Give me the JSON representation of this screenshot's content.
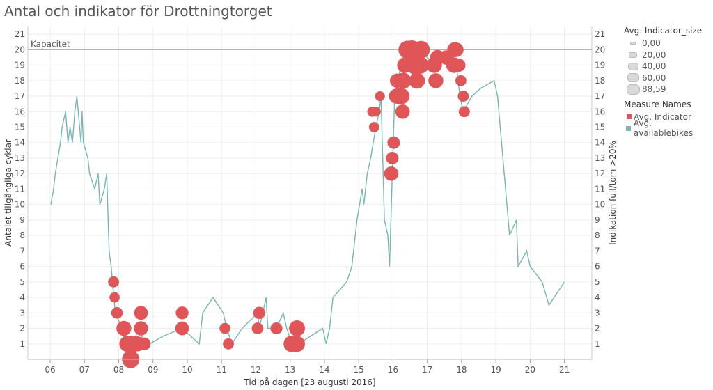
{
  "title": "Antal och indikator för Drottningtorget",
  "colors": {
    "indicator": "#e05558",
    "bikes": "#76b7b2",
    "capacity": "#aaaaaa",
    "grid": "#eeeeee"
  },
  "legend": {
    "size_title": "Avg. Indicator_size",
    "size_items": [
      "0,00",
      "20,00",
      "40,00",
      "60,00",
      "88,59"
    ],
    "color_title": "Measure Names",
    "color_items": [
      "Avg. Indicator",
      "Avg. availablebikes"
    ]
  },
  "chart_data": {
    "type": "line",
    "title": "Antal och indikator för Drottningtorget",
    "xlabel": "Tid på dagen [23 augusti 2016]",
    "ylabel": "Antalet tillgängliga cyklar",
    "y2label": "Indikation full/tom >20%",
    "xlim": [
      5.35,
      21.8
    ],
    "ylim": [
      0,
      21.5
    ],
    "x_ticks": [
      "06",
      "07",
      "08",
      "09",
      "10",
      "11",
      "12",
      "13",
      "14",
      "15",
      "16",
      "17",
      "18",
      "19",
      "20",
      "21"
    ],
    "y_ticks": [
      1,
      2,
      3,
      4,
      5,
      6,
      7,
      8,
      9,
      10,
      11,
      12,
      13,
      14,
      15,
      16,
      17,
      18,
      19,
      20,
      21
    ],
    "capacity": {
      "label": "Kapacitet",
      "value": 20
    },
    "series": [
      {
        "name": "Avg. availablebikes",
        "points": [
          [
            6.02,
            10
          ],
          [
            6.1,
            11
          ],
          [
            6.15,
            12
          ],
          [
            6.3,
            14
          ],
          [
            6.35,
            15
          ],
          [
            6.45,
            16
          ],
          [
            6.52,
            14
          ],
          [
            6.58,
            15
          ],
          [
            6.65,
            14
          ],
          [
            6.72,
            16
          ],
          [
            6.78,
            17
          ],
          [
            6.82,
            16
          ],
          [
            6.9,
            14
          ],
          [
            6.93,
            16
          ],
          [
            6.97,
            14
          ],
          [
            7.1,
            13
          ],
          [
            7.15,
            12
          ],
          [
            7.3,
            11
          ],
          [
            7.4,
            12
          ],
          [
            7.45,
            10
          ],
          [
            7.58,
            11
          ],
          [
            7.65,
            12
          ],
          [
            7.72,
            7
          ],
          [
            7.78,
            6
          ],
          [
            7.82,
            5
          ],
          [
            7.86,
            4
          ],
          [
            7.9,
            3
          ],
          [
            8.1,
            2
          ],
          [
            8.2,
            1
          ],
          [
            8.4,
            1
          ],
          [
            8.6,
            2
          ],
          [
            8.75,
            1
          ],
          [
            8.9,
            1
          ],
          [
            9.3,
            1.5
          ],
          [
            9.85,
            2
          ],
          [
            10.35,
            1
          ],
          [
            10.45,
            3
          ],
          [
            10.75,
            4
          ],
          [
            11.05,
            3
          ],
          [
            11.15,
            2
          ],
          [
            11.3,
            1
          ],
          [
            11.6,
            2
          ],
          [
            12.05,
            3
          ],
          [
            12.1,
            2
          ],
          [
            12.3,
            4
          ],
          [
            12.35,
            2
          ],
          [
            12.6,
            2
          ],
          [
            12.8,
            3
          ],
          [
            12.9,
            2
          ],
          [
            13.05,
            1
          ],
          [
            13.25,
            1
          ],
          [
            13.95,
            2
          ],
          [
            14.05,
            1
          ],
          [
            14.15,
            2
          ],
          [
            14.2,
            3
          ],
          [
            14.25,
            4
          ],
          [
            14.65,
            5
          ],
          [
            14.8,
            6
          ],
          [
            14.95,
            9
          ],
          [
            15.1,
            11
          ],
          [
            15.15,
            10
          ],
          [
            15.25,
            12
          ],
          [
            15.35,
            13
          ],
          [
            15.5,
            15
          ],
          [
            15.6,
            16
          ],
          [
            15.65,
            17
          ],
          [
            15.75,
            9
          ],
          [
            15.85,
            8
          ],
          [
            15.9,
            6
          ],
          [
            15.98,
            12
          ],
          [
            16.05,
            17
          ],
          [
            16.15,
            18
          ],
          [
            16.3,
            20
          ],
          [
            16.5,
            20
          ],
          [
            16.75,
            20
          ],
          [
            17.25,
            19
          ],
          [
            17.55,
            19.5
          ],
          [
            17.72,
            20
          ],
          [
            17.85,
            19
          ],
          [
            17.95,
            17
          ],
          [
            18.05,
            16
          ],
          [
            18.3,
            17
          ],
          [
            18.55,
            17.5
          ],
          [
            18.95,
            18
          ],
          [
            19.05,
            17
          ],
          [
            19.4,
            8
          ],
          [
            19.6,
            9
          ],
          [
            19.65,
            6
          ],
          [
            19.9,
            7
          ],
          [
            20.0,
            6
          ],
          [
            20.35,
            5
          ],
          [
            20.55,
            3.5
          ],
          [
            21.0,
            5
          ]
        ]
      },
      {
        "name": "Avg. Indicator",
        "points": [
          [
            7.85,
            5,
            10
          ],
          [
            7.88,
            4,
            8
          ],
          [
            7.95,
            3,
            12
          ],
          [
            8.15,
            2,
            25
          ],
          [
            8.25,
            1,
            30
          ],
          [
            8.35,
            1,
            33
          ],
          [
            8.45,
            1,
            30
          ],
          [
            8.55,
            1,
            25
          ],
          [
            8.65,
            2,
            22
          ],
          [
            8.65,
            3,
            20
          ],
          [
            8.75,
            1,
            15
          ],
          [
            8.35,
            0,
            38
          ],
          [
            9.85,
            2,
            20
          ],
          [
            9.85,
            3,
            16
          ],
          [
            11.1,
            2,
            10
          ],
          [
            11.2,
            1,
            10
          ],
          [
            12.05,
            2,
            12
          ],
          [
            12.1,
            3,
            14
          ],
          [
            12.6,
            2,
            13
          ],
          [
            13.05,
            1,
            33
          ],
          [
            13.2,
            1,
            30
          ],
          [
            13.2,
            2,
            30
          ],
          [
            15.4,
            16,
            8
          ],
          [
            15.45,
            15,
            8
          ],
          [
            15.5,
            16,
            7
          ],
          [
            15.62,
            17,
            7
          ],
          [
            15.95,
            12,
            22
          ],
          [
            15.98,
            13,
            15
          ],
          [
            16.02,
            14,
            15
          ],
          [
            16.1,
            17,
            25
          ],
          [
            16.12,
            18,
            22
          ],
          [
            16.18,
            17,
            30
          ],
          [
            16.25,
            17,
            30
          ],
          [
            16.28,
            16,
            22
          ],
          [
            16.3,
            18,
            30
          ],
          [
            16.35,
            19,
            28
          ],
          [
            16.42,
            20,
            40
          ],
          [
            16.55,
            20,
            45
          ],
          [
            16.65,
            19,
            45
          ],
          [
            16.7,
            18,
            30
          ],
          [
            16.8,
            19,
            35
          ],
          [
            16.82,
            20,
            38
          ],
          [
            17.2,
            19,
            28
          ],
          [
            17.25,
            18,
            25
          ],
          [
            17.3,
            19.5,
            25
          ],
          [
            17.55,
            19.5,
            22
          ],
          [
            17.78,
            19,
            28
          ],
          [
            17.8,
            20,
            25
          ],
          [
            17.85,
            20,
            22
          ],
          [
            17.92,
            19,
            18
          ],
          [
            17.98,
            18,
            10
          ],
          [
            18.05,
            17,
            10
          ],
          [
            18.08,
            16,
            10
          ]
        ]
      }
    ]
  }
}
